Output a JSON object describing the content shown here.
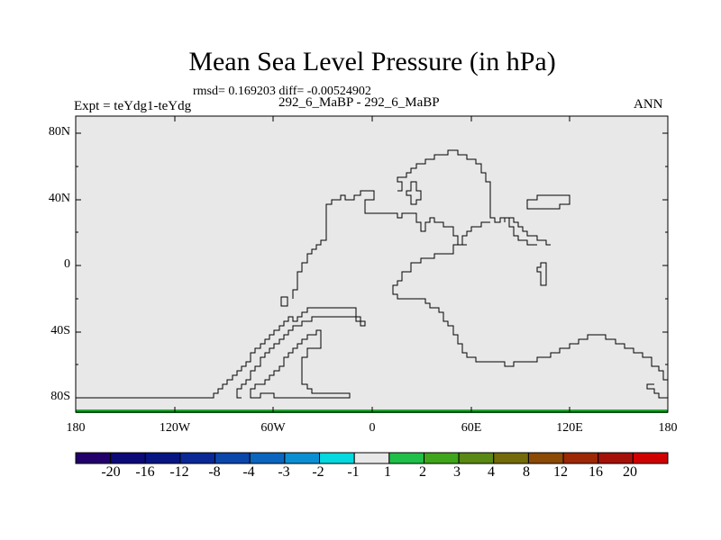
{
  "title": "Mean Sea Level Pressure (in hPa)",
  "stats": "rmsd= 0.169203 diff= -0.00524902",
  "left_label": "Expt = teYdg1-teYdg",
  "center_label": "292_6_MaBP - 292_6_MaBP",
  "right_label": "ANN",
  "y_ticks": [
    "80N",
    "40N",
    "0",
    "40S",
    "80S"
  ],
  "x_ticks": [
    "180",
    "120W",
    "60W",
    "0",
    "60E",
    "120E",
    "180"
  ],
  "colorbar": {
    "labels": [
      "-20",
      "-16",
      "-12",
      "-8",
      "-4",
      "-3",
      "-2",
      "-1",
      "1",
      "2",
      "3",
      "4",
      "8",
      "12",
      "16",
      "20"
    ],
    "colors": [
      "#23006b",
      "#0c0a78",
      "#071582",
      "#0a2896",
      "#0b46ab",
      "#0b66c0",
      "#0c8fd2",
      "#05d8df",
      "#e8e8e8",
      "#1fbf4a",
      "#3fa51b",
      "#5a8814",
      "#746a0a",
      "#8b4a06",
      "#9c2806",
      "#a51109",
      "#d10000"
    ]
  },
  "map": {
    "fill_color": "#e8e8e8",
    "bottom_band_color": "#22a032"
  }
}
